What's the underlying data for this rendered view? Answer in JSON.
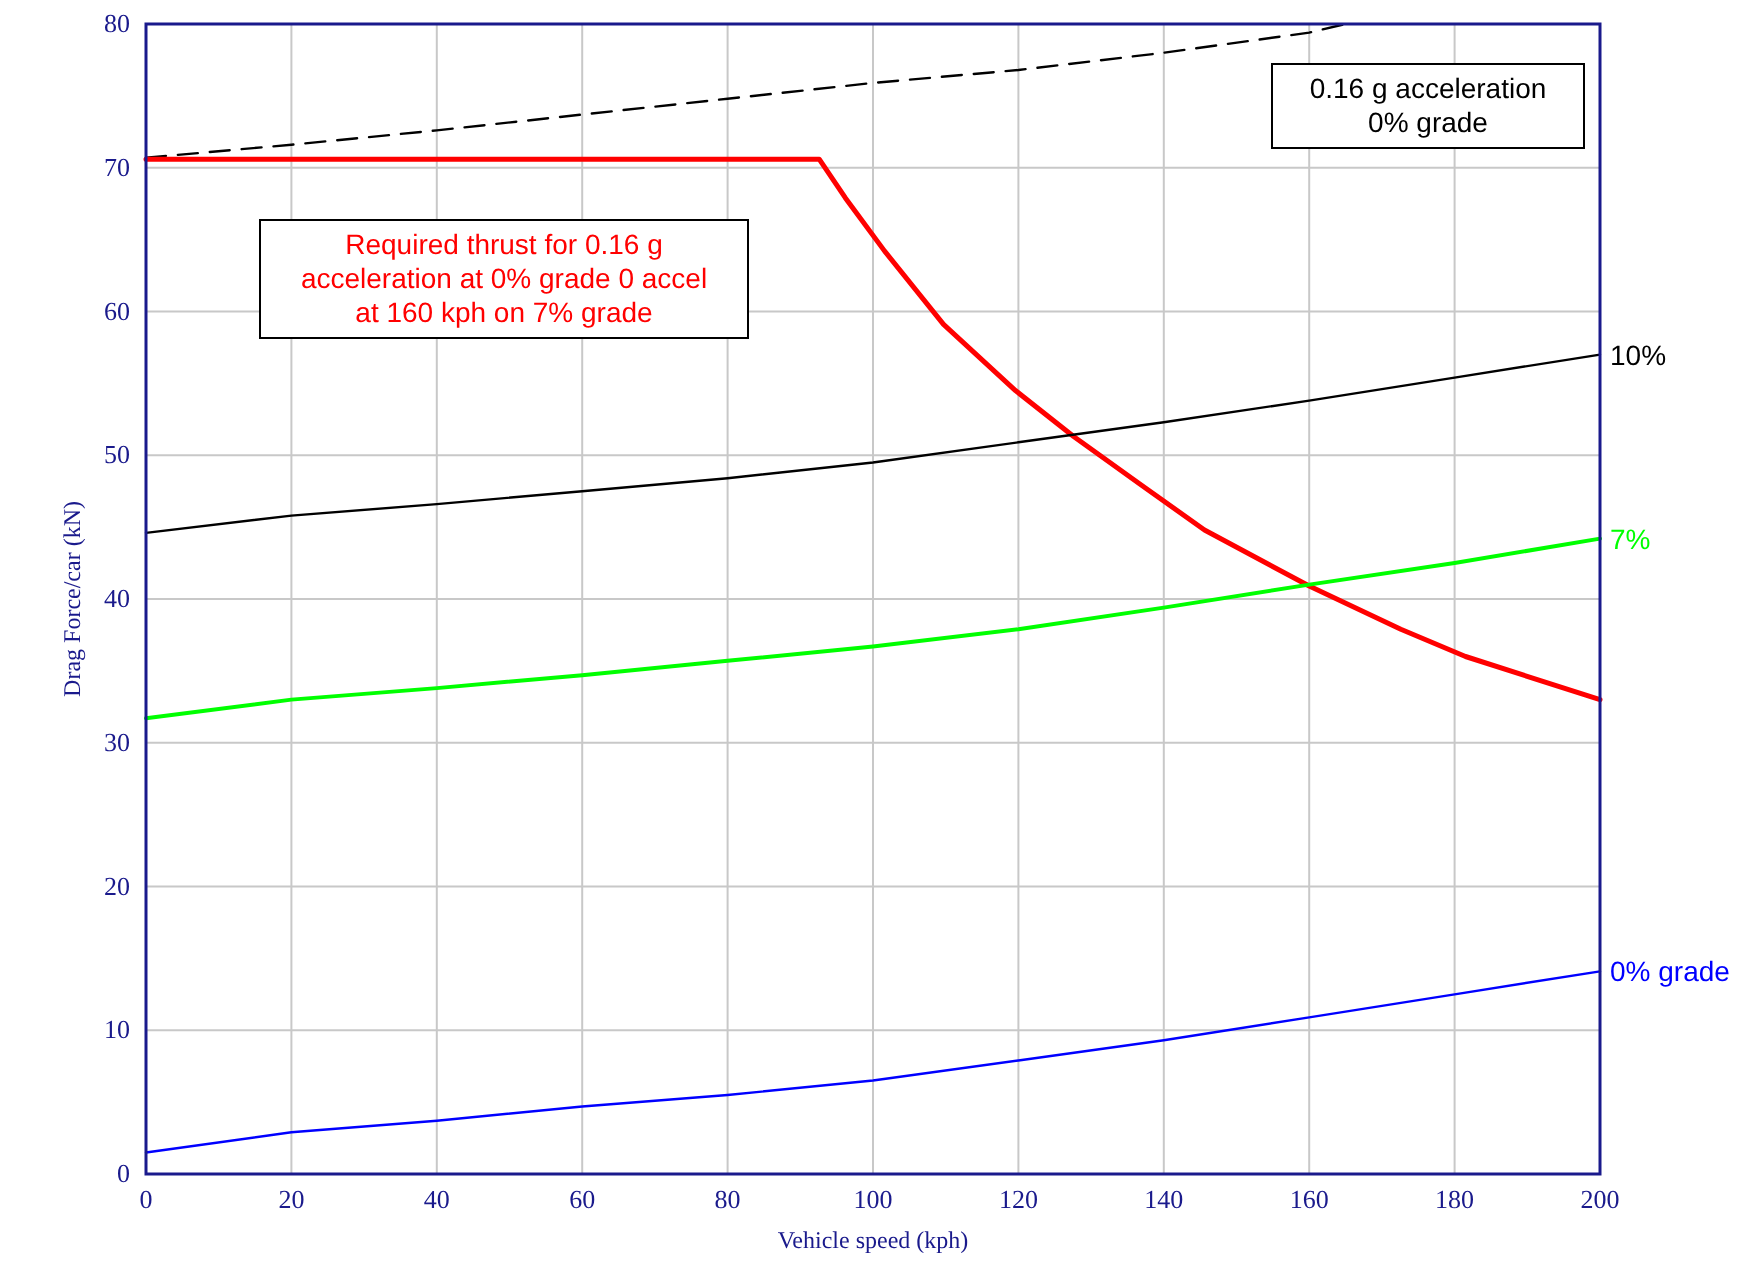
{
  "chart_data": {
    "type": "line",
    "xlabel": "Vehicle speed (kph)",
    "ylabel": "Drag Force/car (kN)",
    "xlim": [
      0,
      200
    ],
    "ylim": [
      0,
      80
    ],
    "xticks": [
      0,
      20,
      40,
      60,
      80,
      100,
      120,
      140,
      160,
      180,
      200
    ],
    "yticks": [
      0,
      10,
      20,
      30,
      40,
      50,
      60,
      70,
      80
    ],
    "grid": true,
    "legend": false,
    "marker": "none",
    "x": [
      0,
      20,
      40,
      60,
      80,
      100,
      120,
      140,
      160,
      180,
      200
    ],
    "series": [
      {
        "name": "0.16 g acceleration 0% grade",
        "color": "#000000",
        "line_style": "dashed",
        "x": [
          0,
          20,
          40,
          60,
          80,
          100,
          120,
          140,
          160,
          165
        ],
        "values": [
          70.7,
          71.6,
          72.6,
          73.7,
          74.8,
          75.9,
          76.8,
          78.0,
          79.4,
          80
        ]
      },
      {
        "name": "Required thrust for 0.16 g acceleration at 0% grade 0 accel at 160  kph on 7% grade",
        "color": "#ff0000",
        "line_style": "solid",
        "x": [
          0,
          92.6,
          96.2,
          101.6,
          109.7,
          119.6,
          127.6,
          136.7,
          145.6,
          160,
          172.6,
          181.5,
          200
        ],
        "values": [
          70.6,
          70.6,
          67.9,
          64.2,
          59.1,
          54.5,
          51.3,
          48.0,
          44.8,
          40.9,
          37.9,
          36.0,
          33.0
        ]
      },
      {
        "name": "10%",
        "color": "#000000",
        "line_style": "solid",
        "values": [
          44.6,
          45.8,
          46.6,
          47.5,
          48.4,
          49.5,
          50.9,
          52.3,
          53.8,
          55.4,
          57.0
        ]
      },
      {
        "name": "7%",
        "color": "#00ff00",
        "line_style": "solid",
        "values": [
          31.7,
          33.0,
          33.8,
          34.7,
          35.7,
          36.7,
          37.9,
          39.4,
          41.0,
          42.5,
          44.2
        ]
      },
      {
        "name": "0% grade",
        "color": "#0000ff",
        "line_style": "solid",
        "values": [
          1.5,
          2.9,
          3.7,
          4.7,
          5.5,
          6.5,
          7.9,
          9.3,
          10.9,
          12.5,
          14.1
        ]
      }
    ]
  }
}
